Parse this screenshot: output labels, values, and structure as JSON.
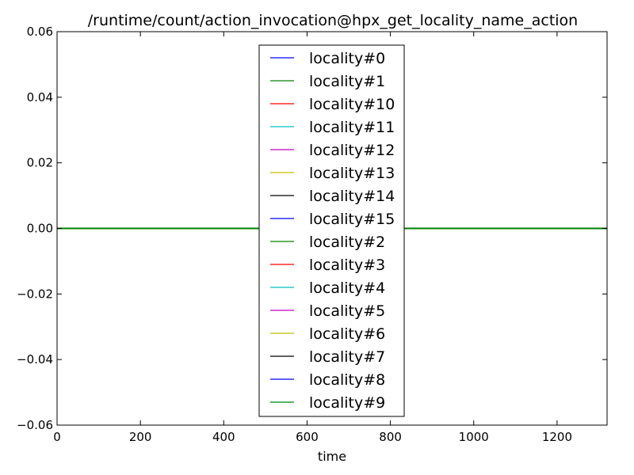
{
  "chart_data": {
    "type": "line",
    "title": "/runtime/count/action_invocation@hpx_get_locality_name_action",
    "xlabel": "time",
    "ylabel": "",
    "xlim": [
      0,
      1320
    ],
    "ylim": [
      -0.06,
      0.06
    ],
    "x_ticks": [
      0,
      200,
      400,
      600,
      800,
      1000,
      1200
    ],
    "y_ticks": [
      0.06,
      0.04,
      0.02,
      0.0,
      -0.02,
      -0.04,
      -0.06
    ],
    "y_tick_labels": [
      "0.06",
      "0.04",
      "0.02",
      "0.00",
      "−0.02",
      "−0.04",
      "−0.06"
    ],
    "grid": false,
    "legend_position": "upper center",
    "series": [
      {
        "name": "locality#0",
        "color": "#0000ff",
        "x": [
          0,
          1320
        ],
        "y": [
          0,
          0
        ]
      },
      {
        "name": "locality#1",
        "color": "#008000",
        "x": [
          0,
          1320
        ],
        "y": [
          0,
          0
        ]
      },
      {
        "name": "locality#10",
        "color": "#ff0000",
        "x": [
          0,
          1320
        ],
        "y": [
          0,
          0
        ]
      },
      {
        "name": "locality#11",
        "color": "#00bfbf",
        "x": [
          0,
          1320
        ],
        "y": [
          0,
          0
        ]
      },
      {
        "name": "locality#12",
        "color": "#bf00bf",
        "x": [
          0,
          1320
        ],
        "y": [
          0,
          0
        ]
      },
      {
        "name": "locality#13",
        "color": "#bfbf00",
        "x": [
          0,
          1320
        ],
        "y": [
          0,
          0
        ]
      },
      {
        "name": "locality#14",
        "color": "#000000",
        "x": [
          0,
          1320
        ],
        "y": [
          0,
          0
        ]
      },
      {
        "name": "locality#15",
        "color": "#0000ff",
        "x": [
          0,
          1320
        ],
        "y": [
          0,
          0
        ]
      },
      {
        "name": "locality#2",
        "color": "#008000",
        "x": [
          0,
          1320
        ],
        "y": [
          0,
          0
        ]
      },
      {
        "name": "locality#3",
        "color": "#ff0000",
        "x": [
          0,
          1320
        ],
        "y": [
          0,
          0
        ]
      },
      {
        "name": "locality#4",
        "color": "#00bfbf",
        "x": [
          0,
          1320
        ],
        "y": [
          0,
          0
        ]
      },
      {
        "name": "locality#5",
        "color": "#bf00bf",
        "x": [
          0,
          1320
        ],
        "y": [
          0,
          0
        ]
      },
      {
        "name": "locality#6",
        "color": "#bfbf00",
        "x": [
          0,
          1320
        ],
        "y": [
          0,
          0
        ]
      },
      {
        "name": "locality#7",
        "color": "#000000",
        "x": [
          0,
          1320
        ],
        "y": [
          0,
          0
        ]
      },
      {
        "name": "locality#8",
        "color": "#0000ff",
        "x": [
          0,
          1320
        ],
        "y": [
          0,
          0
        ]
      },
      {
        "name": "locality#9",
        "color": "#008000",
        "x": [
          0,
          1320
        ],
        "y": [
          0,
          0
        ]
      }
    ]
  }
}
